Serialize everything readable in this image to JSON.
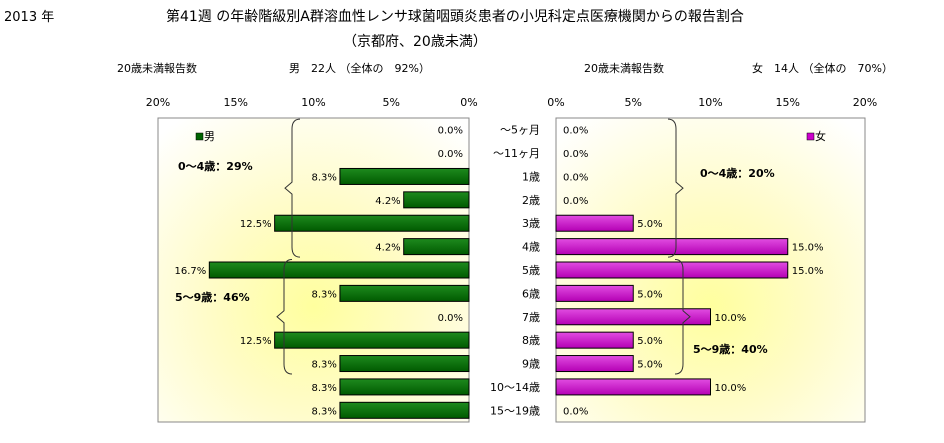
{
  "year_label": "2013 年",
  "title_line1": "第41週 の年齢階級別A群溶血性レンサ球菌咽頭炎患者の小児科定点医療機関からの報告割合",
  "title_line2": "（京都府、20歳未満）",
  "left_header": {
    "count_label": "20歳未満報告数",
    "summary": "男　22人 （全体の　92%）"
  },
  "right_header": {
    "count_label": "20歳未満報告数",
    "summary": "女　14人 （全体の　70%）"
  },
  "chart_data": {
    "type": "bar",
    "orientation": "horizontal-butterfly",
    "categories": [
      "～5ヶ月",
      "～11ヶ月",
      "1歳",
      "2歳",
      "3歳",
      "4歳",
      "5歳",
      "6歳",
      "7歳",
      "8歳",
      "9歳",
      "10～14歳",
      "15～19歳"
    ],
    "series": [
      {
        "name": "男",
        "color": "#006400",
        "values": [
          0.0,
          0.0,
          8.3,
          4.2,
          12.5,
          4.2,
          16.7,
          8.3,
          0.0,
          12.5,
          8.3,
          8.3,
          8.3
        ],
        "labels": [
          "0.0%",
          "0.0%",
          "8.3%",
          "4.2%",
          "12.5%",
          "4.2%",
          "16.7%",
          "8.3%",
          "0.0%",
          "12.5%",
          "8.3%",
          "8.3%",
          "8.3%"
        ]
      },
      {
        "name": "女",
        "color": "#cc00cc",
        "values": [
          0.0,
          0.0,
          0.0,
          0.0,
          5.0,
          15.0,
          15.0,
          5.0,
          10.0,
          5.0,
          5.0,
          10.0,
          0.0
        ],
        "labels": [
          "0.0%",
          "0.0%",
          "0.0%",
          "0.0%",
          "5.0%",
          "15.0%",
          "15.0%",
          "5.0%",
          "10.0%",
          "5.0%",
          "5.0%",
          "10.0%",
          "0.0%"
        ]
      }
    ],
    "xlim": [
      0,
      20
    ],
    "left_ticks": [
      "20%",
      "15%",
      "10%",
      "5%",
      "0%"
    ],
    "right_ticks": [
      "0%",
      "5%",
      "10%",
      "15%",
      "20%"
    ],
    "legend": {
      "male": "男",
      "female": "女"
    },
    "annotations": {
      "male_0_4": "0～4歳：29%",
      "male_5_9": "5～9歳：46%",
      "female_0_4": "0～4歳：20%",
      "female_5_9": "5～9歳：40%"
    }
  }
}
